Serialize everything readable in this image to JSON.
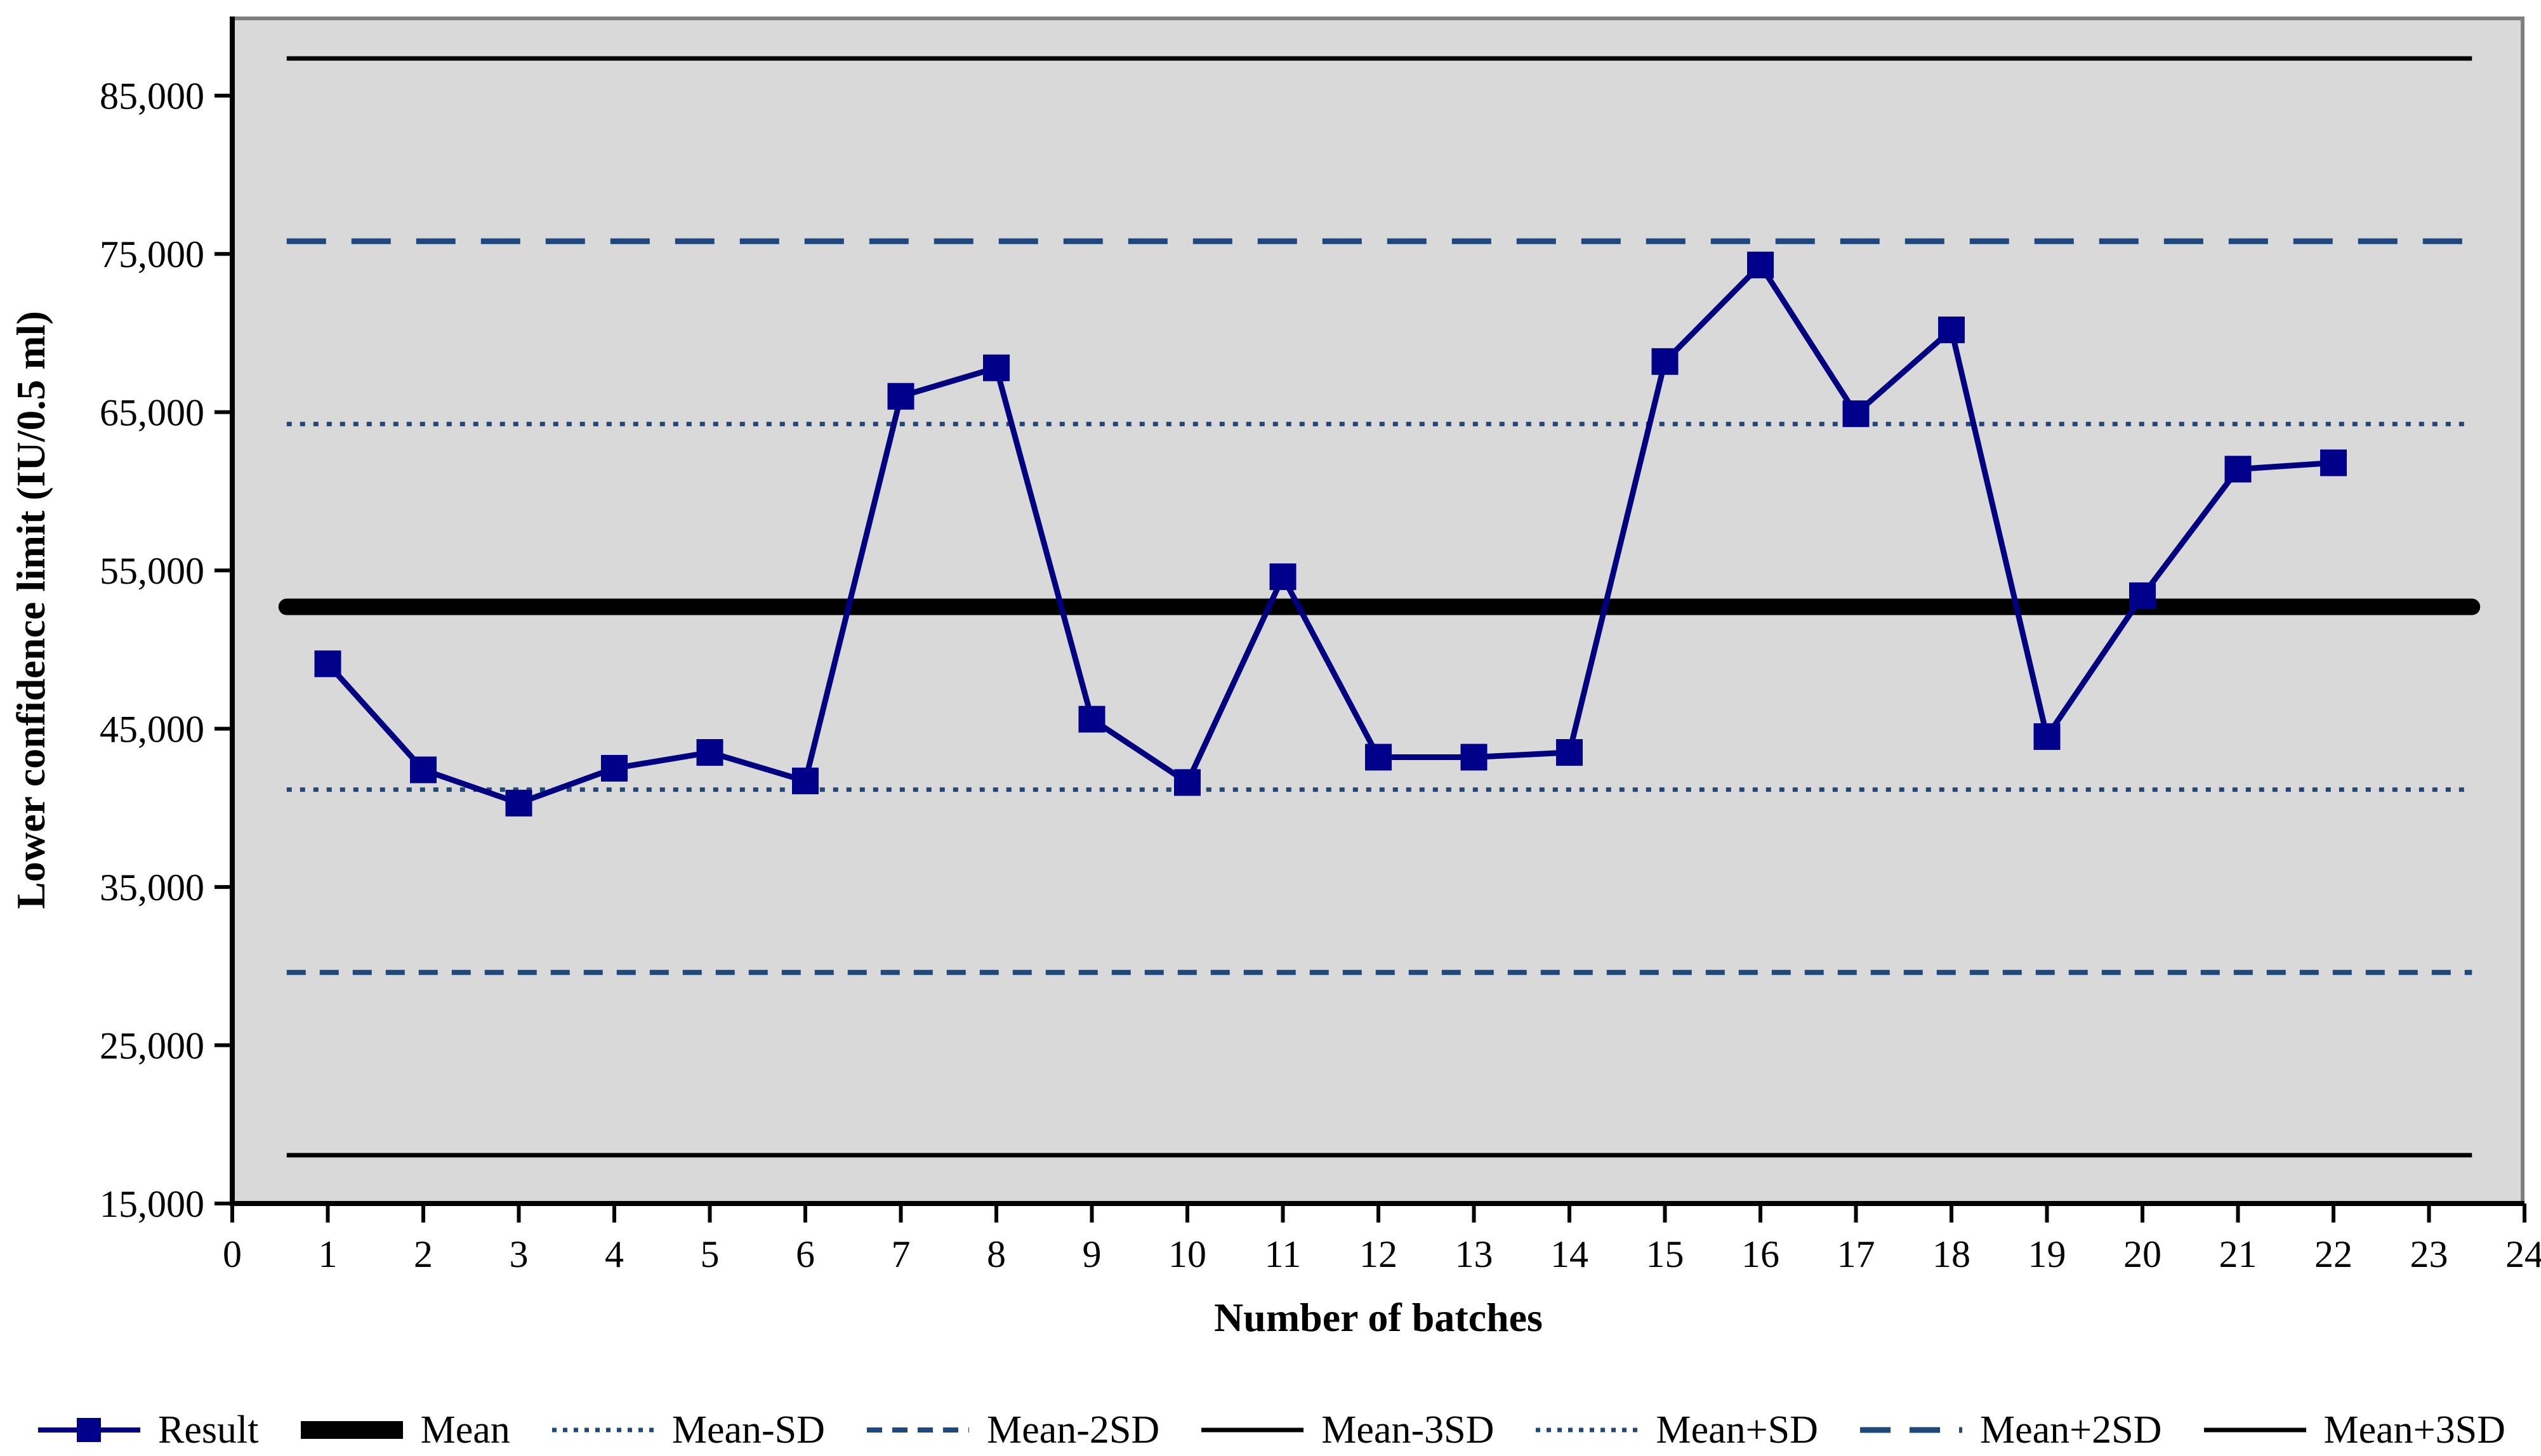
{
  "chart_data": {
    "type": "line",
    "title": "",
    "xlabel": "Number of batches",
    "ylabel": "Lower confidence limit (IU/0.5 ml)",
    "x": [
      1,
      2,
      3,
      4,
      5,
      6,
      7,
      8,
      9,
      10,
      11,
      12,
      13,
      14,
      15,
      16,
      17,
      18,
      19,
      20,
      21,
      22
    ],
    "series": [
      {
        "name": "Result",
        "values": [
          49100,
          42400,
          40300,
          42500,
          43500,
          41700,
          66000,
          67800,
          45600,
          41600,
          54600,
          43200,
          43200,
          43500,
          68200,
          74300,
          64900,
          70200,
          44500,
          53400,
          61400,
          61800
        ],
        "style": "result"
      },
      {
        "name": "Mean",
        "constant": 52700,
        "style": "mean"
      },
      {
        "name": "Mean-SD",
        "constant": 41150,
        "style": "dotted"
      },
      {
        "name": "Mean-2SD",
        "constant": 29600,
        "style": "short-dash"
      },
      {
        "name": "Mean-3SD",
        "constant": 18050,
        "style": "thin-solid"
      },
      {
        "name": "Mean+SD",
        "constant": 64250,
        "style": "dotted"
      },
      {
        "name": "Mean+2SD",
        "constant": 75800,
        "style": "long-dash"
      },
      {
        "name": "Mean+3SD",
        "constant": 87350,
        "style": "thin-solid"
      }
    ],
    "xlim": [
      0,
      24
    ],
    "ylim": [
      15000,
      90000
    ],
    "x_tick_labels": [
      "0",
      "1",
      "2",
      "3",
      "4",
      "5",
      "6",
      "7",
      "8",
      "9",
      "10",
      "11",
      "12",
      "13",
      "14",
      "15",
      "16",
      "17",
      "18",
      "19",
      "20",
      "21",
      "22",
      "23",
      "24"
    ],
    "y_tick_values": [
      15000,
      25000,
      35000,
      45000,
      55000,
      65000,
      75000,
      85000
    ],
    "y_tick_labels": [
      "15,000",
      "25,000",
      "35,000",
      "45,000",
      "55,000",
      "65,000",
      "75,000",
      "85,000"
    ],
    "grid": "off",
    "legend_position": "bottom",
    "control_line_x_span": [
      0.57,
      23.45
    ],
    "colors": {
      "result_line": "#000080",
      "result_marker": "#00008B",
      "mean_line": "#000000",
      "sd_lines": "#1F497D",
      "sigma3_lines": "#000000",
      "plot_background": "#D9D9D9",
      "plot_border": "#7F7F7F",
      "axis": "#000000"
    }
  },
  "legend": {
    "items": [
      {
        "label": "Result",
        "style": "result"
      },
      {
        "label": "Mean",
        "style": "mean"
      },
      {
        "label": "Mean-SD",
        "style": "dotted"
      },
      {
        "label": "Mean-2SD",
        "style": "short-dash"
      },
      {
        "label": "Mean-3SD",
        "style": "thin-solid"
      },
      {
        "label": "Mean+SD",
        "style": "dotted"
      },
      {
        "label": "Mean+2SD",
        "style": "long-dash"
      },
      {
        "label": "Mean+3SD",
        "style": "thin-solid"
      }
    ]
  }
}
